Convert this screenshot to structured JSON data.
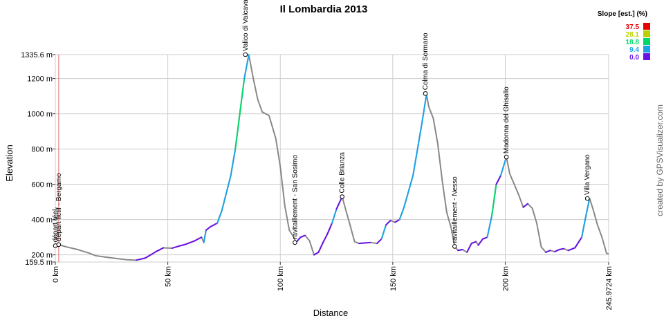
{
  "chart_data": {
    "type": "line",
    "title": "Il Lombardia 2013",
    "xlabel": "Distance",
    "ylabel": "Elevation",
    "xlim": [
      0,
      245.9724
    ],
    "ylim": [
      159.5,
      1335.6
    ],
    "x_ticks": [
      {
        "value": 0,
        "label": "0 km"
      },
      {
        "value": 50,
        "label": "50 km"
      },
      {
        "value": 100,
        "label": "100 km"
      },
      {
        "value": 150,
        "label": "150 km"
      },
      {
        "value": 200,
        "label": "200 km"
      },
      {
        "value": 245.9724,
        "label": "245.9724 km"
      }
    ],
    "y_ticks": [
      {
        "value": 159.5,
        "label": "159.5 m"
      },
      {
        "value": 200,
        "label": "200 m"
      },
      {
        "value": 400,
        "label": "400 m"
      },
      {
        "value": 600,
        "label": "600 m"
      },
      {
        "value": 800,
        "label": "800 m"
      },
      {
        "value": 1000,
        "label": "1000 m"
      },
      {
        "value": 1200,
        "label": "1200 m"
      },
      {
        "value": 1335.6,
        "label": "1335.6 m"
      }
    ],
    "grid": true,
    "start_marker_km": 1.5,
    "series": [
      {
        "x": [
          0,
          1.5,
          5,
          10,
          15,
          18,
          22,
          28,
          32,
          36,
          40,
          45,
          48,
          52,
          55,
          58,
          62,
          65,
          66,
          67,
          69,
          72,
          74,
          76,
          78,
          80,
          82,
          84,
          86,
          88,
          90,
          92,
          95,
          98,
          100,
          102,
          104,
          106,
          107,
          109,
          111,
          113,
          115,
          117,
          119,
          121,
          123,
          125,
          127.5,
          129,
          131,
          133,
          135,
          140,
          143,
          145,
          147,
          149,
          151,
          153,
          155,
          157,
          159,
          161,
          163,
          165,
          166,
          168,
          170,
          172,
          174,
          176,
          177.5,
          179,
          181,
          183,
          185,
          187,
          188,
          190,
          192,
          194,
          196,
          198,
          200.5,
          202,
          204,
          206,
          208,
          210,
          212,
          214,
          216,
          218,
          220,
          222,
          224,
          226,
          228,
          231,
          234,
          236,
          237.5,
          239,
          241,
          243,
          245,
          245.9724
        ],
        "y": [
          252,
          258,
          245,
          230,
          210,
          195,
          188,
          178,
          172,
          170,
          182,
          220,
          240,
          238,
          250,
          260,
          280,
          300,
          270,
          340,
          360,
          380,
          450,
          550,
          650,
          800,
          1000,
          1200,
          1335,
          1200,
          1080,
          1010,
          990,
          860,
          700,
          480,
          340,
          300,
          270,
          300,
          310,
          280,
          200,
          215,
          270,
          320,
          380,
          460,
          530,
          460,
          370,
          275,
          265,
          270,
          265,
          290,
          370,
          395,
          385,
          400,
          470,
          560,
          650,
          800,
          950,
          1110,
          1040,
          975,
          830,
          620,
          440,
          350,
          248,
          225,
          230,
          215,
          265,
          275,
          255,
          290,
          300,
          420,
          600,
          650,
          755,
          660,
          600,
          540,
          470,
          490,
          465,
          380,
          245,
          215,
          225,
          218,
          230,
          235,
          225,
          240,
          300,
          430,
          520,
          460,
          370,
          300,
          210,
          205
        ]
      }
    ],
    "waypoints": [
      {
        "x": 0,
        "y": 252,
        "label": "départ réel"
      },
      {
        "x": 1.5,
        "y": 258,
        "label": "départ fictif - Bergamo"
      },
      {
        "x": 84.5,
        "y": 1335.6,
        "label": "Valico di Valcava"
      },
      {
        "x": 106.5,
        "y": 270,
        "label": "ravitaillement - San Sosimo"
      },
      {
        "x": 127.5,
        "y": 530,
        "label": "Colle Brianza"
      },
      {
        "x": 164.5,
        "y": 1115,
        "label": "Colma di Sormano"
      },
      {
        "x": 177.5,
        "y": 248,
        "label": "ravitaillement - Nesso"
      },
      {
        "x": 200.5,
        "y": 755,
        "label": "Madonna del Ghisallo"
      },
      {
        "x": 236.5,
        "y": 520,
        "label": "Villa Vergano"
      }
    ],
    "legend": {
      "title": "Slope [est.] (%)",
      "position": "top-right",
      "items": [
        {
          "label": "37.5",
          "color": "#e60000"
        },
        {
          "label": "28.1",
          "color": "#b8d200"
        },
        {
          "label": "18.8",
          "color": "#00d86a"
        },
        {
          "label": "9.4",
          "color": "#1aa3e8"
        },
        {
          "label": "0.0",
          "color": "#6a12e6"
        }
      ]
    },
    "credit": "created by GPSVisualizer.com"
  }
}
